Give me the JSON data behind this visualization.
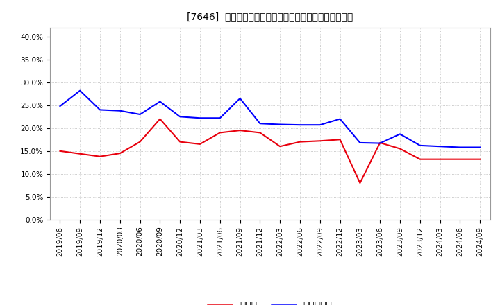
{
  "title": "[7646]  現顔金、有利子負債の総資産に対する比率の推移",
  "x_labels": [
    "2019/06",
    "2019/09",
    "2019/12",
    "2020/03",
    "2020/06",
    "2020/09",
    "2020/12",
    "2021/03",
    "2021/06",
    "2021/09",
    "2021/12",
    "2022/03",
    "2022/06",
    "2022/09",
    "2022/12",
    "2023/03",
    "2023/06",
    "2023/09",
    "2023/12",
    "2024/03",
    "2024/06",
    "2024/09"
  ],
  "cash_ratio": [
    0.15,
    0.144,
    0.138,
    0.145,
    0.17,
    0.22,
    0.17,
    0.165,
    0.19,
    0.195,
    0.19,
    0.16,
    0.17,
    0.172,
    0.175,
    0.08,
    0.168,
    0.155,
    0.132,
    0.132,
    0.132,
    0.132
  ],
  "debt_ratio": [
    0.248,
    0.282,
    0.24,
    0.238,
    0.23,
    0.258,
    0.225,
    0.222,
    0.222,
    0.265,
    0.21,
    0.208,
    0.207,
    0.207,
    0.22,
    0.168,
    0.167,
    0.187,
    0.162,
    0.16,
    0.158,
    0.158
  ],
  "cash_color": "#e8000d",
  "debt_color": "#0000ff",
  "background_color": "#ffffff",
  "grid_color": "#bbbbbb",
  "ylim": [
    0.0,
    0.42
  ],
  "yticks": [
    0.0,
    0.05,
    0.1,
    0.15,
    0.2,
    0.25,
    0.3,
    0.35,
    0.4
  ],
  "legend_cash": "現顔金",
  "legend_debt": "有利子負債",
  "title_fontsize": 11,
  "axis_fontsize": 7.5,
  "legend_fontsize": 9
}
